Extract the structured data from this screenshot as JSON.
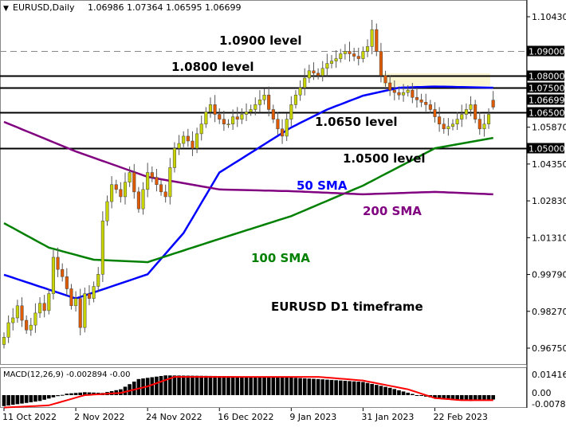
{
  "header": {
    "symbol_timeframe": "EURUSD,Daily",
    "ohlc": "1.06986 1.07364 1.06595 1.06699"
  },
  "colors": {
    "bull": "#c8d400",
    "bear": "#e05a00",
    "sma50": "#0000ff",
    "sma100": "#008000",
    "sma200": "#800080",
    "signal": "#ff0000",
    "highlight": "#fbf7d2"
  },
  "chart_data": [
    {
      "type": "candlestick",
      "title": "EURUSD,Daily",
      "last_bar": {
        "open": 1.06986,
        "high": 1.07364,
        "low": 1.06595,
        "close": 1.06699
      },
      "ylim": [
        0.96,
        1.11
      ],
      "y_ticks": [
        "1.10430",
        "1.05870",
        "1.04350",
        "1.02830",
        "1.01310",
        "0.99790",
        "0.98270",
        "0.96750"
      ],
      "x_ticks": [
        {
          "bar": 0,
          "label": "11 Oct 2022"
        },
        {
          "bar": 16,
          "label": "2 Nov 2022"
        },
        {
          "bar": 32,
          "label": "24 Nov 2022"
        },
        {
          "bar": 48,
          "label": "16 Dec 2022"
        },
        {
          "bar": 64,
          "label": "9 Jan 2023"
        },
        {
          "bar": 80,
          "label": "31 Jan 2023"
        },
        {
          "bar": 96,
          "label": "22 Feb 2023"
        }
      ],
      "closes": [
        0.972,
        0.978,
        0.98,
        0.985,
        0.979,
        0.975,
        0.977,
        0.982,
        0.986,
        0.983,
        0.99,
        1.005,
        1.0,
        0.997,
        0.992,
        0.985,
        0.988,
        0.976,
        0.99,
        0.988,
        0.993,
        0.998,
        1.02,
        1.028,
        1.035,
        1.033,
        1.03,
        1.036,
        1.04,
        1.032,
        1.025,
        1.033,
        1.04,
        1.038,
        1.035,
        1.032,
        1.03,
        1.042,
        1.05,
        1.052,
        1.055,
        1.053,
        1.05,
        1.056,
        1.06,
        1.065,
        1.068,
        1.064,
        1.062,
        1.06,
        1.06,
        1.063,
        1.062,
        1.064,
        1.065,
        1.066,
        1.068,
        1.07,
        1.072,
        1.066,
        1.062,
        1.058,
        1.055,
        1.062,
        1.068,
        1.072,
        1.075,
        1.079,
        1.082,
        1.081,
        1.08,
        1.083,
        1.085,
        1.086,
        1.087,
        1.089,
        1.09,
        1.089,
        1.088,
        1.087,
        1.09,
        1.092,
        1.099,
        1.09,
        1.08,
        1.077,
        1.074,
        1.073,
        1.072,
        1.073,
        1.074,
        1.071,
        1.07,
        1.069,
        1.068,
        1.066,
        1.063,
        1.06,
        1.058,
        1.059,
        1.06,
        1.062,
        1.064,
        1.066,
        1.068,
        1.062,
        1.058,
        1.06,
        1.064,
        1.06699
      ],
      "sma": [
        {
          "name": "50 SMA",
          "color": "#0000ff",
          "points": [
            [
              0,
              0.9978
            ],
            [
              16,
              0.988
            ],
            [
              32,
              0.998
            ],
            [
              40,
              1.015
            ],
            [
              48,
              1.04
            ],
            [
              64,
              1.0586
            ],
            [
              72,
              1.066
            ],
            [
              80,
              1.0717
            ],
            [
              88,
              1.075
            ],
            [
              96,
              1.0755
            ],
            [
              109,
              1.075
            ]
          ]
        },
        {
          "name": "100 SMA",
          "color": "#008000",
          "points": [
            [
              0,
              1.0191
            ],
            [
              10,
              1.009
            ],
            [
              20,
              1.004
            ],
            [
              32,
              1.003
            ],
            [
              48,
              1.0126
            ],
            [
              64,
              1.022
            ],
            [
              80,
              1.0346
            ],
            [
              96,
              1.05
            ],
            [
              109,
              1.0543
            ]
          ]
        },
        {
          "name": "200 SMA",
          "color": "#800080",
          "points": [
            [
              0,
              1.0609
            ],
            [
              16,
              1.0487
            ],
            [
              32,
              1.0382
            ],
            [
              48,
              1.033
            ],
            [
              64,
              1.0323
            ],
            [
              80,
              1.031
            ],
            [
              96,
              1.032
            ],
            [
              109,
              1.031
            ]
          ]
        }
      ],
      "levels": [
        {
          "price": 1.09,
          "label": "1.09000",
          "style": "dashed"
        },
        {
          "price": 1.08,
          "label": "1.08000",
          "style": "solid"
        },
        {
          "price": 1.075,
          "label": "1.07500",
          "style": "solid"
        },
        {
          "price": 1.06699,
          "label": "1.06699",
          "style": "price"
        },
        {
          "price": 1.065,
          "label": "1.06500",
          "style": "solid"
        },
        {
          "price": 1.05,
          "label": "1.05000",
          "style": "solid"
        }
      ],
      "annotations": [
        {
          "text": "1.0900 level",
          "color": "#000000"
        },
        {
          "text": "1.0800 level",
          "color": "#000000"
        },
        {
          "text": "1.0650 level",
          "color": "#000000"
        },
        {
          "text": "1.0500 level",
          "color": "#000000"
        },
        {
          "text": "50 SMA",
          "color": "#0000ff"
        },
        {
          "text": "200 SMA",
          "color": "#800080"
        },
        {
          "text": "100 SMA",
          "color": "#008000"
        },
        {
          "text": "EURUSD D1 timeframe",
          "color": "#000000"
        }
      ]
    },
    {
      "type": "bar",
      "title": "MACD(12,26,9) -0.002894 -0.00",
      "y_ticks": [
        "0.014168",
        "0.00",
        "-0.007836"
      ],
      "macd_points": [
        [
          0,
          -0.0075
        ],
        [
          8,
          -0.004
        ],
        [
          14,
          0.001
        ],
        [
          18,
          0.002
        ],
        [
          22,
          0.0015
        ],
        [
          26,
          0.004
        ],
        [
          30,
          0.011
        ],
        [
          36,
          0.0135
        ],
        [
          50,
          0.013
        ],
        [
          64,
          0.012
        ],
        [
          70,
          0.011
        ],
        [
          80,
          0.009
        ],
        [
          86,
          0.005
        ],
        [
          92,
          0.0
        ],
        [
          98,
          -0.003
        ],
        [
          104,
          -0.004
        ],
        [
          109,
          -0.003
        ]
      ],
      "signal_points": [
        [
          0,
          -0.0085
        ],
        [
          10,
          -0.007
        ],
        [
          18,
          0.0
        ],
        [
          26,
          0.0015
        ],
        [
          32,
          0.006
        ],
        [
          38,
          0.0125
        ],
        [
          70,
          0.0125
        ],
        [
          80,
          0.01
        ],
        [
          90,
          0.004
        ],
        [
          96,
          -0.002
        ],
        [
          102,
          -0.0035
        ],
        [
          109,
          -0.0035
        ]
      ]
    }
  ]
}
